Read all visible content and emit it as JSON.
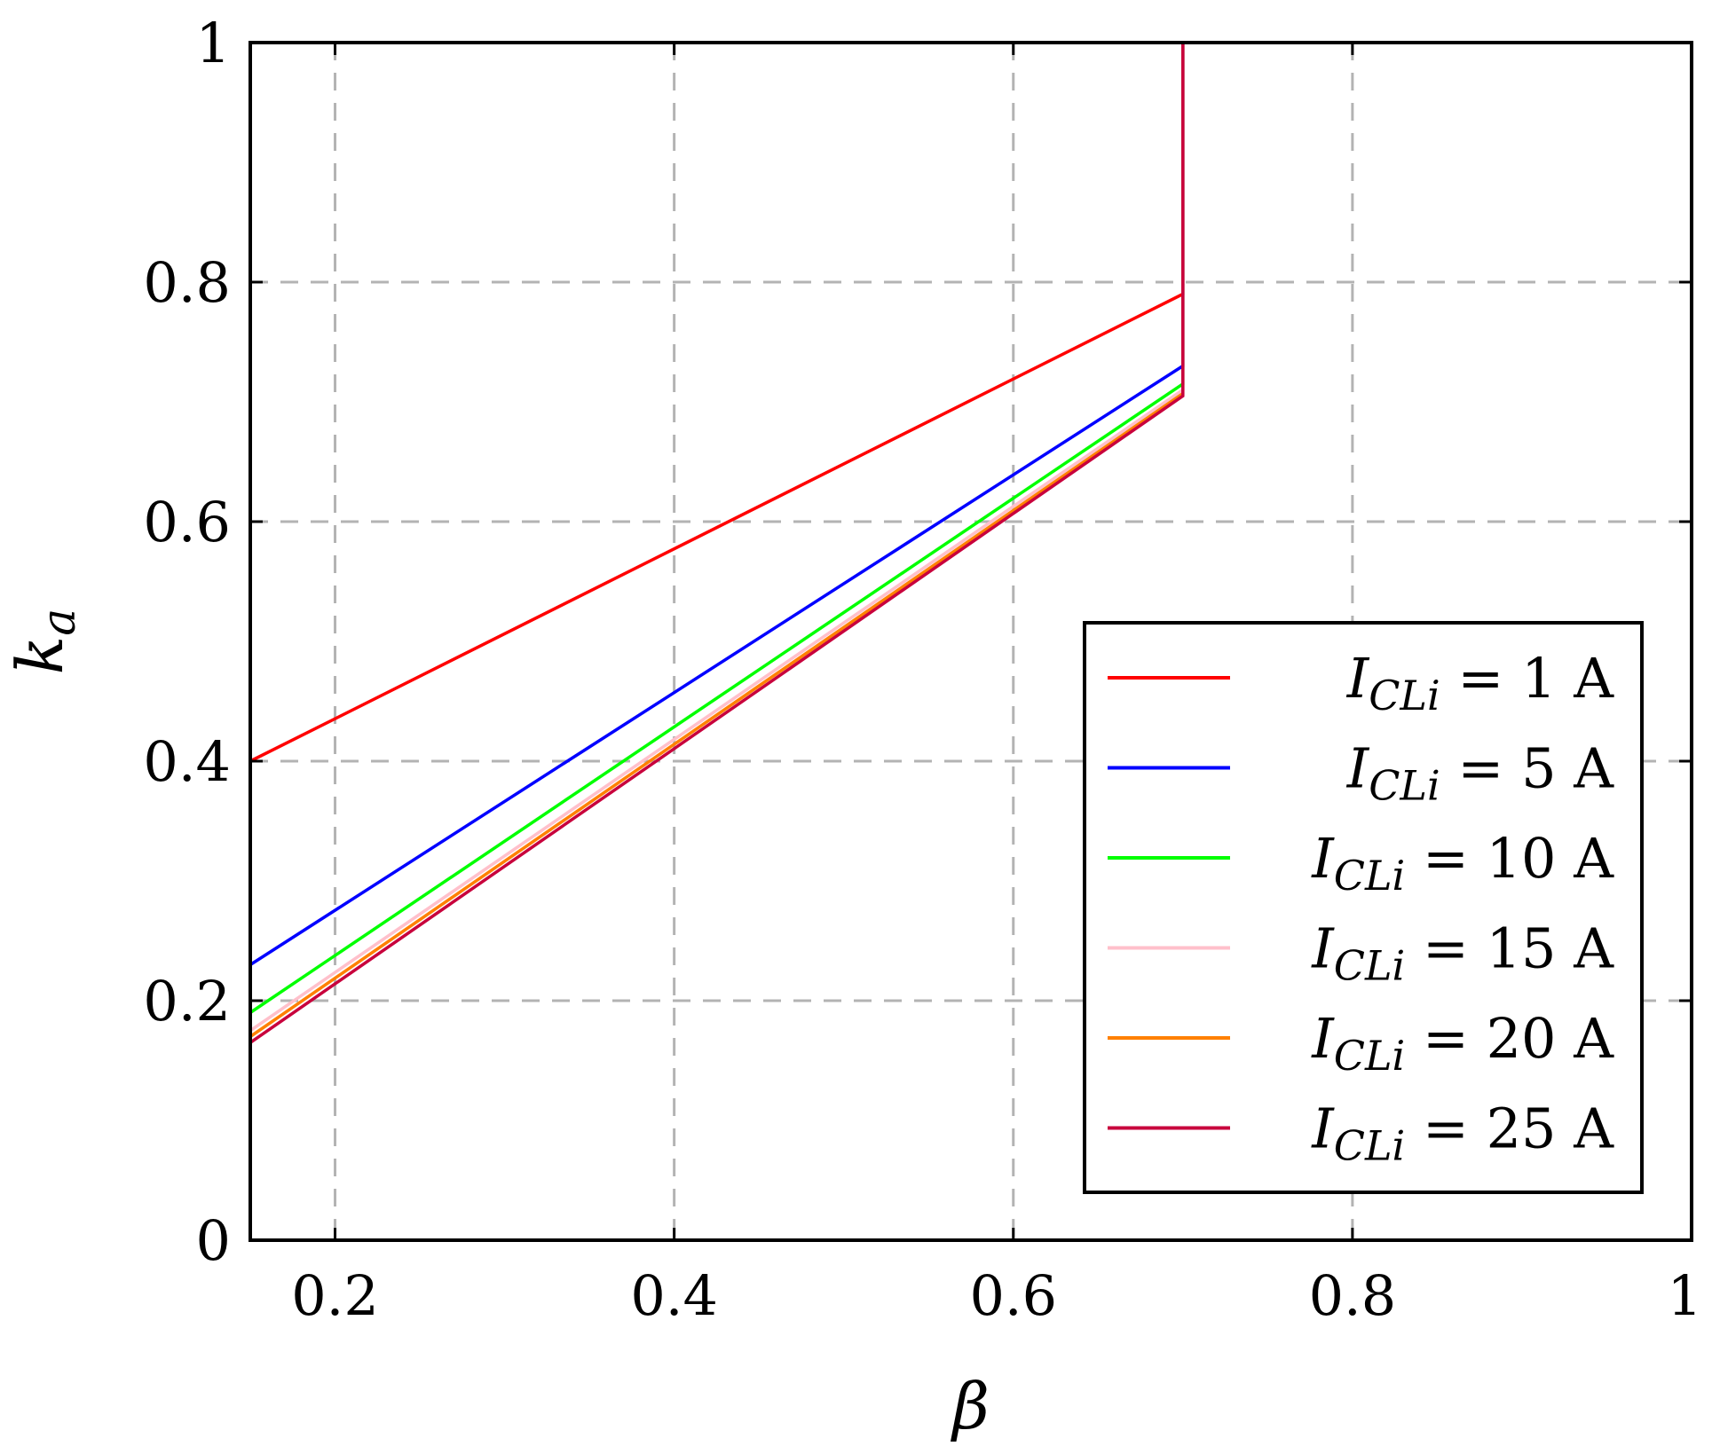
{
  "chart_data": {
    "type": "line",
    "xlabel": "β",
    "ylabel": "k_a",
    "xlim": [
      0.15,
      1.0
    ],
    "ylim": [
      0,
      1
    ],
    "x_ticks": [
      "0.2",
      "0.4",
      "0.6",
      "0.8",
      "1"
    ],
    "y_ticks": [
      "0",
      "0.2",
      "0.4",
      "0.6",
      "0.8",
      "1"
    ],
    "grid": true,
    "legend_position": "lower-right",
    "series": [
      {
        "name": "I_CLi = 1 A",
        "label_main": "I",
        "label_sub": "CLi",
        "label_rest": " = 1 A",
        "color": "#ff0000",
        "x": [
          0.15,
          0.7,
          0.7,
          1.0
        ],
        "y": [
          0.4,
          0.79,
          1.0,
          1.0
        ]
      },
      {
        "name": "I_CLi = 5 A",
        "label_main": "I",
        "label_sub": "CLi",
        "label_rest": " = 5 A",
        "color": "#0000ff",
        "x": [
          0.15,
          0.7,
          0.7,
          1.0
        ],
        "y": [
          0.23,
          0.73,
          1.0,
          1.0
        ]
      },
      {
        "name": "I_CLi = 10 A",
        "label_main": "I",
        "label_sub": "CLi",
        "label_rest": " = 10 A",
        "color": "#00ff00",
        "x": [
          0.15,
          0.7,
          0.7,
          1.0
        ],
        "y": [
          0.19,
          0.715,
          1.0,
          1.0
        ]
      },
      {
        "name": "I_CLi = 15 A",
        "label_main": "I",
        "label_sub": "CLi",
        "label_rest": " = 15 A",
        "color": "#ffc0cb",
        "x": [
          0.15,
          0.7,
          0.7,
          1.0
        ],
        "y": [
          0.175,
          0.71,
          1.0,
          1.0
        ]
      },
      {
        "name": "I_CLi = 20 A",
        "label_main": "I",
        "label_sub": "CLi",
        "label_rest": " = 20 A",
        "color": "#ff8000",
        "x": [
          0.15,
          0.7,
          0.7,
          1.0
        ],
        "y": [
          0.17,
          0.707,
          1.0,
          1.0
        ]
      },
      {
        "name": "I_CLi = 25 A",
        "label_main": "I",
        "label_sub": "CLi",
        "label_rest": " = 25 A",
        "color": "#c8003c",
        "x": [
          0.15,
          0.7,
          0.7,
          1.0
        ],
        "y": [
          0.165,
          0.705,
          1.0,
          1.0
        ]
      }
    ]
  }
}
